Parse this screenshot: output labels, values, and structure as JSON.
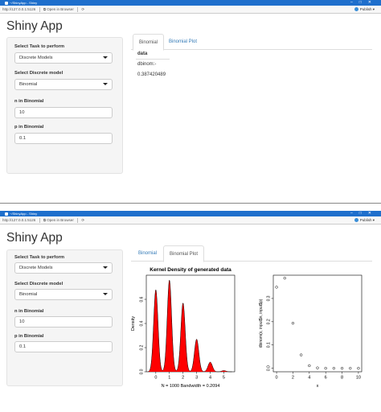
{
  "window": {
    "title": "~/ShinyApp - Shiny",
    "address": "http://127.0.0.1:5126",
    "open_in_browser": "Open in Browser",
    "publish": "Publish"
  },
  "app_title": "Shiny App",
  "sidebar": {
    "task_label": "Select Task to perform",
    "task_value": "Discrete Models",
    "model_label": "Select Discrete model",
    "model_value": "Binomial",
    "n_label": "n in Binomial",
    "n_value": "10",
    "p_label": "p in Binomial",
    "p_value": "0.1"
  },
  "tabs": [
    "Binomial",
    "Binomial Plot"
  ],
  "binomial_output": {
    "header": "data",
    "expression": "dbinom:-",
    "value": "0.387420489"
  },
  "chart_data": [
    {
      "type": "area",
      "title": "Kernel Density of generated data",
      "xlabel": "N = 1000   Bandwidth = 0.2094",
      "ylabel": "Density",
      "xlim": [
        -0.7,
        5.8
      ],
      "ylim": [
        0,
        0.8
      ],
      "xticks": [
        "0",
        "1",
        "2",
        "3",
        "4",
        "5"
      ],
      "yticks": [
        "0.0",
        "0.2",
        "0.4",
        "0.6"
      ],
      "fill_color": "#ff0000",
      "peaks": [
        {
          "x": 0,
          "y": 0.68
        },
        {
          "x": 1,
          "y": 0.76
        },
        {
          "x": 2,
          "y": 0.57
        },
        {
          "x": 3,
          "y": 0.27
        },
        {
          "x": 4,
          "y": 0.08
        },
        {
          "x": 5,
          "y": 0.01
        }
      ]
    },
    {
      "type": "scatter",
      "xlabel": "x",
      "ylabel": "dbinom(x, input$n, input$p)",
      "xlim": [
        -0.4,
        10.4
      ],
      "ylim": [
        -0.015,
        0.4
      ],
      "xticks": [
        "0",
        "2",
        "4",
        "6",
        "8",
        "10"
      ],
      "yticks": [
        "0.0",
        "0.1",
        "0.2",
        "0.3"
      ],
      "x": [
        0,
        1,
        2,
        3,
        4,
        5,
        6,
        7,
        8,
        9,
        10
      ],
      "y": [
        0.3487,
        0.3874,
        0.1937,
        0.0574,
        0.0112,
        0.0015,
        0.0001,
        0.0,
        0.0,
        0.0,
        0.0
      ]
    }
  ]
}
